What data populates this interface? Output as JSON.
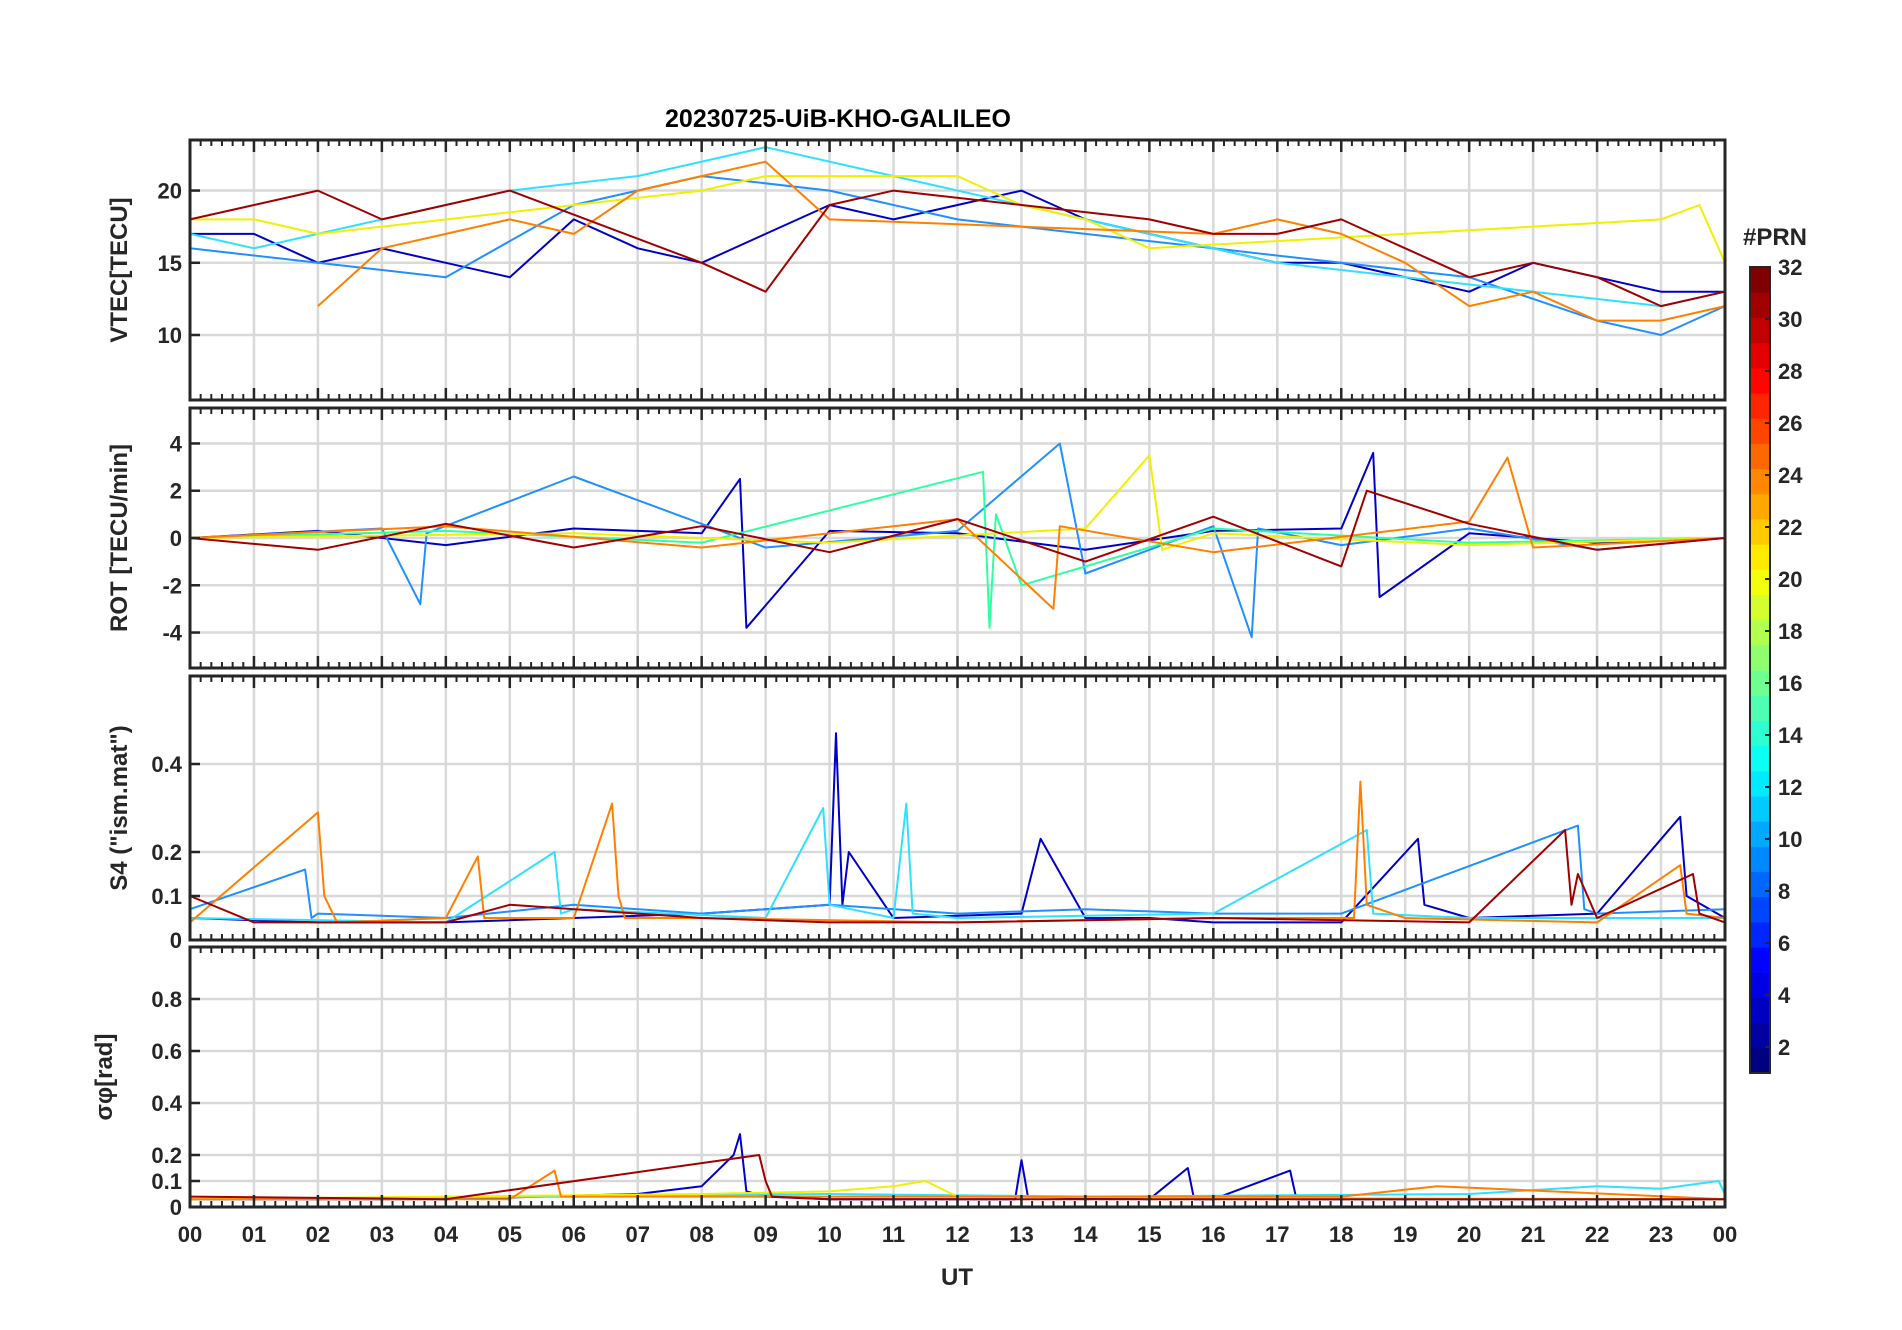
{
  "figure": {
    "title": "20230725-UiB-KHO-GALILEO",
    "xlabel": "UT",
    "x_ticks": [
      "00",
      "01",
      "02",
      "03",
      "04",
      "05",
      "06",
      "07",
      "08",
      "09",
      "10",
      "11",
      "12",
      "13",
      "14",
      "15",
      "16",
      "17",
      "18",
      "19",
      "20",
      "21",
      "22",
      "23",
      "00"
    ]
  },
  "colorbar": {
    "label": "#PRN",
    "range": [
      1,
      32
    ],
    "ticks": [
      "2",
      "4",
      "6",
      "8",
      "10",
      "12",
      "14",
      "16",
      "18",
      "20",
      "22",
      "24",
      "26",
      "28",
      "30",
      "32"
    ]
  },
  "chart_data": [
    {
      "type": "line",
      "id": "vtec",
      "ylabel": "VTEC[TECU]",
      "xlim": [
        0,
        24
      ],
      "ylim": [
        5.5,
        23.5
      ],
      "yticks": [
        10,
        15,
        20
      ],
      "ytick_labels": [
        "10",
        "15",
        "20"
      ],
      "series": [
        {
          "name": "PRN 3",
          "color": "#0000c8",
          "x": [
            0,
            1,
            2,
            3,
            4,
            5,
            6,
            7,
            8,
            9,
            10,
            11,
            12,
            13,
            14,
            15,
            16,
            17,
            18,
            19,
            20,
            21,
            22,
            23,
            24
          ],
          "values": [
            17,
            17,
            15,
            16,
            15,
            14,
            18,
            16,
            15,
            17,
            19,
            18,
            19,
            20,
            18,
            17,
            16,
            15,
            15,
            14,
            13,
            15,
            14,
            13,
            13
          ]
        },
        {
          "name": "PRN 9",
          "color": "#2090ff",
          "x": [
            0,
            2,
            4,
            6,
            8,
            10,
            12,
            14,
            16,
            18,
            20,
            22,
            23,
            24
          ],
          "values": [
            16,
            15,
            14,
            19,
            21,
            20,
            18,
            17,
            16,
            15,
            14,
            11,
            10,
            12
          ]
        },
        {
          "name": "PRN 12",
          "color": "#30e0ff",
          "x": [
            0,
            1,
            3,
            5,
            7,
            9,
            11,
            13,
            15,
            17,
            19,
            21,
            23,
            24
          ],
          "values": [
            17,
            16,
            18,
            20,
            21,
            23,
            21,
            19,
            17,
            15,
            14,
            13,
            12,
            13
          ]
        },
        {
          "name": "PRN 20",
          "color": "#f0f000",
          "x": [
            0,
            1,
            2,
            8,
            9,
            12,
            13,
            14,
            15,
            23,
            23.6,
            24
          ],
          "values": [
            18,
            18,
            17,
            20,
            21,
            21,
            19,
            18,
            16,
            18,
            19,
            15
          ]
        },
        {
          "name": "PRN 24",
          "color": "#ff8000",
          "x": [
            2,
            3,
            4,
            5,
            6,
            7,
            8,
            9,
            10,
            16,
            17,
            18,
            19,
            20,
            21,
            22,
            23,
            24
          ],
          "values": [
            12,
            16,
            17,
            18,
            17,
            20,
            21,
            22,
            18,
            17,
            18,
            17,
            15,
            12,
            13,
            11,
            11,
            12
          ]
        },
        {
          "name": "PRN 31",
          "color": "#a00000",
          "x": [
            0,
            1,
            2,
            3,
            4,
            5,
            8,
            9,
            10,
            11,
            15,
            16,
            17,
            18,
            19,
            20,
            21,
            22,
            23,
            24
          ],
          "values": [
            18,
            19,
            20,
            18,
            19,
            20,
            15,
            13,
            19,
            20,
            18,
            17,
            17,
            18,
            16,
            14,
            15,
            14,
            12,
            13
          ]
        }
      ]
    },
    {
      "type": "line",
      "id": "rot",
      "ylabel": "ROT [TECU/min]",
      "xlim": [
        0,
        24
      ],
      "ylim": [
        -5.5,
        5.5
      ],
      "yticks": [
        -4,
        -2,
        0,
        2,
        4
      ],
      "ytick_labels": [
        "-4",
        "-2",
        "0",
        "2",
        "4"
      ],
      "series": [
        {
          "name": "PRN 3",
          "color": "#0000c8",
          "x": [
            0,
            2,
            4,
            6,
            8,
            8.6,
            8.7,
            10,
            12,
            14,
            16,
            18,
            18.5,
            18.6,
            20,
            22,
            24
          ],
          "values": [
            0,
            0.3,
            -0.3,
            0.4,
            0.2,
            2.5,
            -3.8,
            0.3,
            0.2,
            -0.5,
            0.3,
            0.4,
            3.6,
            -2.5,
            0.2,
            -0.2,
            0
          ]
        },
        {
          "name": "PRN 9",
          "color": "#2090ff",
          "x": [
            0,
            3,
            3.6,
            3.7,
            6,
            9,
            12,
            13.6,
            14,
            16,
            16.6,
            16.7,
            18,
            20,
            22,
            24
          ],
          "values": [
            0,
            0.4,
            -2.8,
            0.2,
            2.6,
            -0.4,
            0.3,
            4.0,
            -1.5,
            0.5,
            -4.2,
            0.4,
            -0.3,
            0.4,
            -0.5,
            0
          ]
        },
        {
          "name": "PRN 15",
          "color": "#30ffa0",
          "x": [
            0,
            4,
            8,
            12.4,
            12.5,
            12.6,
            13,
            16,
            20,
            24
          ],
          "values": [
            0,
            0.3,
            -0.2,
            2.8,
            -3.8,
            1.0,
            -2.0,
            0.4,
            -0.2,
            0
          ]
        },
        {
          "name": "PRN 20",
          "color": "#f0f000",
          "x": [
            0,
            6,
            10,
            14,
            15,
            15.2,
            16,
            20,
            24
          ],
          "values": [
            0,
            0.2,
            -0.2,
            0.4,
            3.5,
            -0.5,
            0.2,
            -0.3,
            0
          ]
        },
        {
          "name": "PRN 24",
          "color": "#ff8000",
          "x": [
            0,
            4,
            8,
            12,
            13.5,
            13.6,
            16,
            20,
            20.6,
            21,
            24
          ],
          "values": [
            0,
            0.5,
            -0.4,
            0.8,
            -3.0,
            0.5,
            -0.6,
            0.7,
            3.4,
            -0.4,
            0
          ]
        },
        {
          "name": "PRN 31",
          "color": "#a00000",
          "x": [
            0,
            2,
            4,
            6,
            8,
            10,
            12,
            14,
            16,
            18,
            18.4,
            20,
            22,
            24
          ],
          "values": [
            0,
            -0.5,
            0.6,
            -0.4,
            0.5,
            -0.6,
            0.8,
            -1.0,
            0.9,
            -1.2,
            2.0,
            0.6,
            -0.5,
            0
          ]
        }
      ]
    },
    {
      "type": "line",
      "id": "s4",
      "ylabel": "S4 (\"ism.mat\")",
      "xlim": [
        0,
        24
      ],
      "ylim": [
        0,
        0.6
      ],
      "yticks": [
        0,
        0.1,
        0.2,
        0.4
      ],
      "ytick_labels": [
        "0",
        "0.1",
        "0.2",
        "0.4"
      ],
      "series": [
        {
          "name": "PRN 3",
          "color": "#0000c8",
          "x": [
            0,
            2,
            4,
            6,
            8,
            10,
            10.1,
            10.2,
            10.3,
            11,
            13,
            13.3,
            14,
            15,
            16,
            18,
            19.2,
            19.3,
            20,
            22,
            23.3,
            23.4,
            24
          ],
          "values": [
            0.05,
            0.04,
            0.04,
            0.05,
            0.06,
            0.08,
            0.47,
            0.08,
            0.2,
            0.05,
            0.06,
            0.23,
            0.05,
            0.05,
            0.04,
            0.04,
            0.23,
            0.08,
            0.05,
            0.06,
            0.28,
            0.1,
            0.05
          ]
        },
        {
          "name": "PRN 9",
          "color": "#2090ff",
          "x": [
            0,
            1.8,
            1.9,
            2,
            4,
            6,
            8,
            10,
            12,
            14,
            16,
            18,
            21.7,
            21.8,
            22,
            24
          ],
          "values": [
            0.07,
            0.16,
            0.05,
            0.06,
            0.05,
            0.08,
            0.06,
            0.08,
            0.06,
            0.07,
            0.06,
            0.06,
            0.26,
            0.07,
            0.06,
            0.07
          ]
        },
        {
          "name": "PRN 12",
          "color": "#30e0ff",
          "x": [
            0,
            4,
            5.7,
            5.8,
            6,
            9,
            9.9,
            10,
            11,
            11.2,
            11.3,
            12,
            16,
            18.4,
            18.5,
            20,
            24
          ],
          "values": [
            0.05,
            0.04,
            0.2,
            0.06,
            0.07,
            0.05,
            0.3,
            0.08,
            0.05,
            0.31,
            0.06,
            0.05,
            0.06,
            0.25,
            0.06,
            0.05,
            0.05
          ]
        },
        {
          "name": "PRN 24",
          "color": "#ff8000",
          "x": [
            0,
            2,
            2.1,
            2.3,
            4,
            4.5,
            4.6,
            6,
            6.6,
            6.7,
            6.8,
            8,
            12,
            16,
            18.2,
            18.3,
            18.4,
            19,
            22,
            23.3,
            23.4,
            24
          ],
          "values": [
            0.04,
            0.29,
            0.1,
            0.04,
            0.05,
            0.19,
            0.05,
            0.05,
            0.31,
            0.1,
            0.05,
            0.05,
            0.04,
            0.05,
            0.05,
            0.36,
            0.08,
            0.05,
            0.04,
            0.17,
            0.06,
            0.05
          ]
        },
        {
          "name": "PRN 31",
          "color": "#a00000",
          "x": [
            0,
            1,
            4,
            5,
            8,
            10,
            12,
            16,
            20,
            21.5,
            21.6,
            21.7,
            22,
            23.5,
            23.6,
            24
          ],
          "values": [
            0.1,
            0.04,
            0.04,
            0.08,
            0.05,
            0.04,
            0.04,
            0.05,
            0.04,
            0.25,
            0.08,
            0.15,
            0.05,
            0.15,
            0.06,
            0.04
          ]
        }
      ]
    },
    {
      "type": "line",
      "id": "sigma_phi",
      "ylabel": "σφ[rad]",
      "xlim": [
        0,
        24
      ],
      "ylim": [
        0,
        1.0
      ],
      "yticks": [
        0,
        0.1,
        0.2,
        0.4,
        0.6,
        0.8
      ],
      "ytick_labels": [
        "0",
        "0.1",
        "0.2",
        "0.4",
        "0.6",
        "0.8"
      ],
      "series": [
        {
          "name": "PRN 3",
          "color": "#0000c8",
          "x": [
            0,
            4,
            7,
            8,
            8.5,
            8.6,
            8.7,
            9,
            10,
            12,
            12.9,
            13,
            13.1,
            15,
            15.6,
            15.7,
            16,
            17.2,
            17.3,
            20,
            24
          ],
          "values": [
            0.03,
            0.03,
            0.05,
            0.08,
            0.2,
            0.28,
            0.06,
            0.04,
            0.03,
            0.03,
            0.03,
            0.18,
            0.04,
            0.03,
            0.15,
            0.03,
            0.03,
            0.14,
            0.03,
            0.03,
            0.03
          ]
        },
        {
          "name": "PRN 12",
          "color": "#30e0ff",
          "x": [
            0,
            6,
            10,
            14,
            20,
            22,
            23,
            23.9,
            24
          ],
          "values": [
            0.03,
            0.04,
            0.05,
            0.04,
            0.05,
            0.08,
            0.07,
            0.1,
            0.05
          ]
        },
        {
          "name": "PRN 20",
          "color": "#f0f000",
          "x": [
            0,
            8,
            10,
            11,
            11.5,
            12,
            24
          ],
          "values": [
            0.03,
            0.05,
            0.06,
            0.08,
            0.1,
            0.04,
            0.03
          ]
        },
        {
          "name": "PRN 24",
          "color": "#ff8000",
          "x": [
            0,
            5,
            5.7,
            5.8,
            6,
            18,
            19.5,
            24
          ],
          "values": [
            0.03,
            0.03,
            0.14,
            0.04,
            0.04,
            0.04,
            0.08,
            0.03
          ]
        },
        {
          "name": "PRN 31",
          "color": "#a00000",
          "x": [
            0,
            4,
            8.9,
            9,
            9.1,
            10,
            16,
            24
          ],
          "values": [
            0.04,
            0.03,
            0.2,
            0.1,
            0.04,
            0.03,
            0.03,
            0.03
          ]
        }
      ]
    }
  ]
}
